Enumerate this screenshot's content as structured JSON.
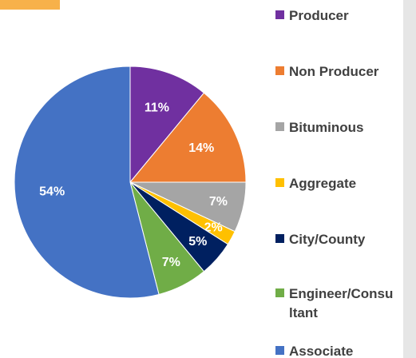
{
  "chart_data": {
    "type": "pie",
    "categories": [
      "Producer",
      "Non Producer",
      "Bituminous",
      "Aggregate",
      "City/County",
      "Engineer/Consultant",
      "Associate"
    ],
    "values": [
      11,
      14,
      7,
      2,
      5,
      7,
      54
    ],
    "value_labels": [
      "11%",
      "14%",
      "7%",
      "2%",
      "5%",
      "7%",
      "54%"
    ],
    "colors": [
      "#7030a0",
      "#ed7d31",
      "#a5a5a5",
      "#ffc000",
      "#002060",
      "#70ad47",
      "#4472c4"
    ],
    "legend": "right"
  }
}
